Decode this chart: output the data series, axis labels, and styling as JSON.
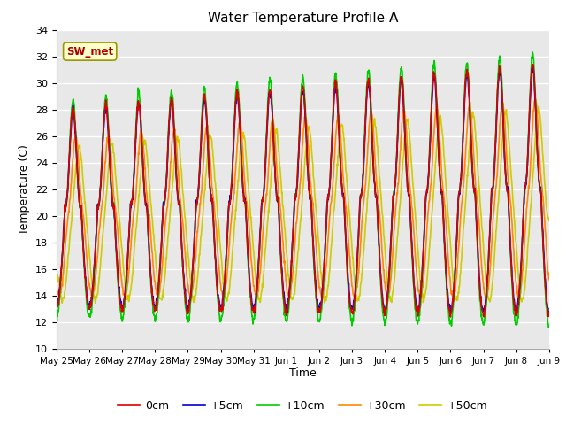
{
  "title": "Water Temperature Profile A",
  "xlabel": "Time",
  "ylabel": "Temperature (C)",
  "ylim": [
    10,
    34
  ],
  "yticks": [
    10,
    12,
    14,
    16,
    18,
    20,
    22,
    24,
    26,
    28,
    30,
    32,
    34
  ],
  "bg_color": "#e8e8e8",
  "fig_bg": "#ffffff",
  "annotation_text": "SW_met",
  "annotation_bg": "#ffffcc",
  "annotation_border": "#999900",
  "annotation_text_color": "#aa0000",
  "legend_entries": [
    "0cm",
    "+5cm",
    "+10cm",
    "+30cm",
    "+50cm"
  ],
  "line_colors": [
    "#dd0000",
    "#0000cc",
    "#00cc00",
    "#ff8800",
    "#cccc00"
  ],
  "line_widths": [
    1.2,
    1.2,
    1.2,
    1.2,
    1.2
  ],
  "n_points": 1440,
  "grid_color": "#ffffff",
  "grid_linewidth": 1.0,
  "xtick_labels": [
    "May 25",
    "May 26",
    "May 27",
    "May 28",
    "May 29",
    "May 30",
    "May 31",
    "Jun 1",
    "Jun 2",
    "Jun 3",
    "Jun 4",
    "Jun 5",
    "Jun 6",
    "Jun 7",
    "Jun 8",
    "Jun 9"
  ],
  "figsize": [
    6.4,
    4.8
  ],
  "dpi": 100
}
